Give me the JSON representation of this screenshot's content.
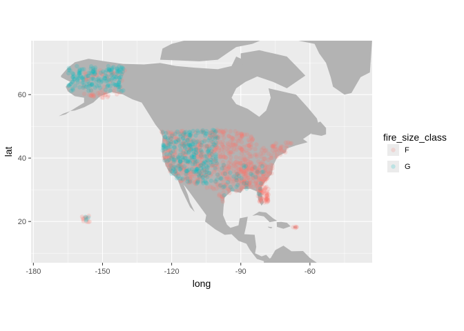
{
  "chart_data": {
    "type": "scatter",
    "xlabel": "long",
    "ylabel": "lat",
    "xlim": [
      -181,
      -33
    ],
    "ylim": [
      7,
      77
    ],
    "x_ticks": [
      -180,
      -150,
      -120,
      -90,
      -60
    ],
    "x_tick_labels": [
      "-180",
      "-150",
      "-120",
      "-90",
      "-60"
    ],
    "y_ticks": [
      20,
      40,
      60
    ],
    "y_tick_labels": [
      "20",
      "40",
      "60"
    ],
    "grid": true,
    "basemap": "North America land polygons (grey)",
    "legend": {
      "title": "fire_size_class",
      "placement": "right",
      "entries": [
        {
          "label": "F",
          "color": "#F8766D"
        },
        {
          "label": "G",
          "color": "#00BFC4"
        }
      ]
    },
    "point_alpha": 0.2,
    "colors": {
      "panel": "#EBEBEB",
      "grid": "#FFFFFF",
      "land": "#B3B3B3",
      "F": "#F8766D",
      "G": "#00BFC4"
    },
    "series": [
      {
        "name": "F",
        "clusters": [
          {
            "long": [
              -158,
              -140
            ],
            "lat": [
              59,
              68
            ],
            "count": 60
          },
          {
            "long": [
              -125,
              -67
            ],
            "lat": [
              25,
              49
            ],
            "count": 650
          },
          {
            "long": [
              -82,
              -78
            ],
            "lat": [
              26,
              31
            ],
            "count": 50
          },
          {
            "long": [
              -92,
              -76
            ],
            "lat": [
              31,
              38
            ],
            "count": 80
          },
          {
            "long": [
              -159,
              -155
            ],
            "lat": [
              19.5,
              22
            ],
            "count": 12
          },
          {
            "long": [
              -67.5,
              -65.5
            ],
            "lat": [
              17.8,
              18.4
            ],
            "count": 5
          }
        ]
      },
      {
        "name": "G",
        "clusters": [
          {
            "long": [
              -165,
              -141
            ],
            "lat": [
              61,
              69
            ],
            "count": 160
          },
          {
            "long": [
              -124,
              -100
            ],
            "lat": [
              32,
              49
            ],
            "count": 260
          },
          {
            "long": [
              -100,
              -80
            ],
            "lat": [
              27,
              38
            ],
            "count": 40
          },
          {
            "long": [
              -158,
              -155
            ],
            "lat": [
              19.5,
              21.5
            ],
            "count": 4
          }
        ]
      }
    ]
  }
}
